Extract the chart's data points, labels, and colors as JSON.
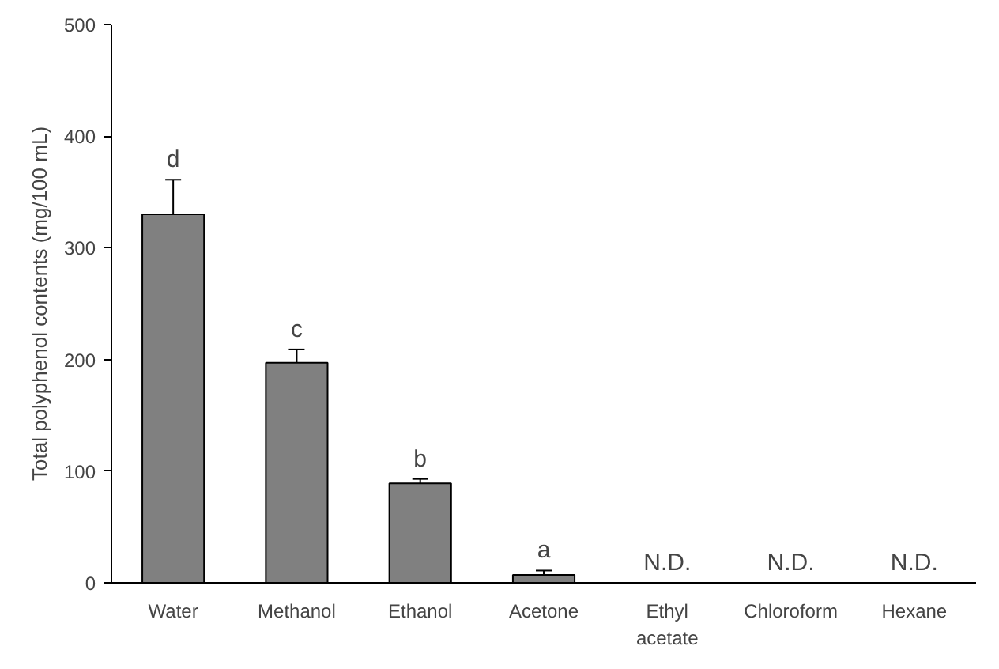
{
  "chart_data": {
    "type": "bar",
    "ylabel": "Total polyphenol contents (mg/100 mL)",
    "categories": [
      "Water",
      "Methanol",
      "Ethanol",
      "Acetone",
      "Ethyl acetate",
      "Chloroform",
      "Hexane"
    ],
    "values": [
      330,
      197,
      89,
      7,
      null,
      null,
      null
    ],
    "errors": [
      31,
      12,
      4,
      4,
      null,
      null,
      null
    ],
    "color": "#808080",
    "ylim": [
      0,
      500
    ],
    "yticks": [
      0,
      100,
      200,
      300,
      400,
      500
    ],
    "grid": false,
    "annotations": [
      {
        "text": "d",
        "x": "Water",
        "y": 361
      },
      {
        "text": "c",
        "x": "Methanol",
        "y": 209
      },
      {
        "text": "b",
        "x": "Ethanol",
        "y": 93
      },
      {
        "text": "a",
        "x": "Acetone",
        "y": 11
      },
      "N.D.",
      "N.D.",
      "N.D."
    ]
  }
}
